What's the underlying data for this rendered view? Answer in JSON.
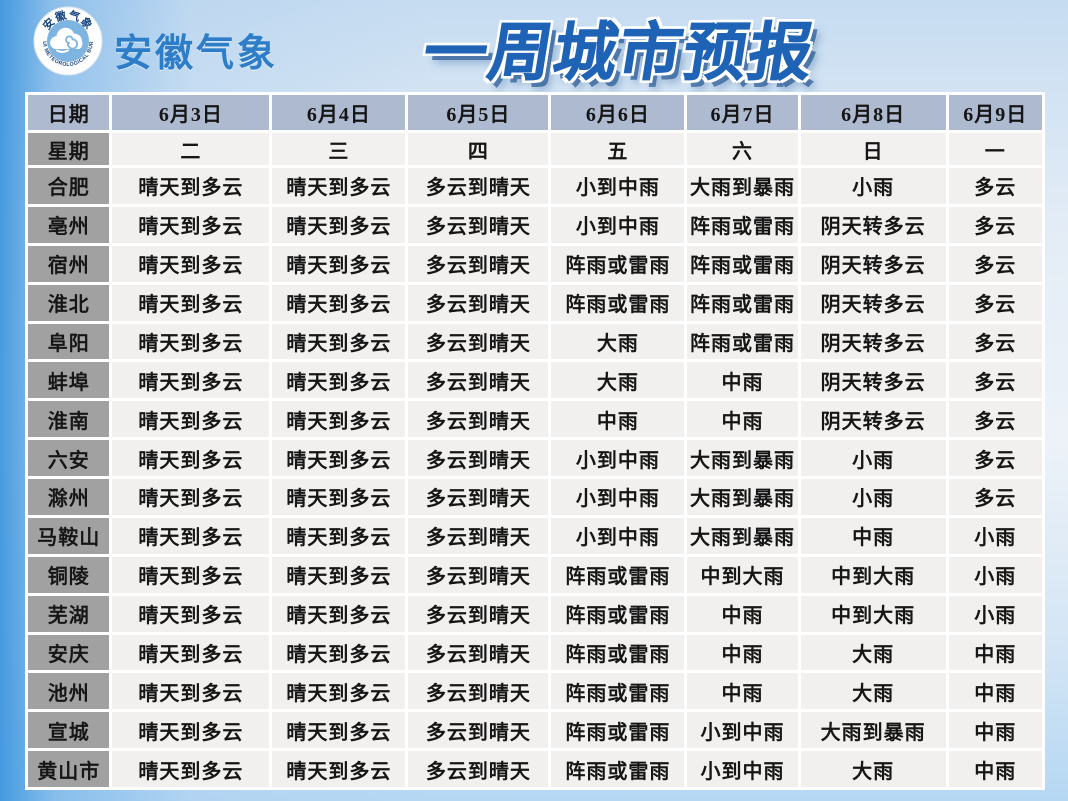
{
  "brand": {
    "name": "安徽气象",
    "logo": {
      "ring_top_text": "安徽气象",
      "ring_bottom_text": "ANHUI METEOROLOGICAL BUREAU",
      "icon": "cloud-spiral-icon"
    }
  },
  "colors": {
    "brand_blue": "#2e7dc8",
    "title_blue": "#1e63b5",
    "title_shadow_blue": "#1a4e8d",
    "page_top_blue": "#3e96de",
    "page_bottom_blue": "#b5d7f3",
    "date_header_bg": "#aebacf",
    "label_gray_bg": "#a1a1a1",
    "cell_bg": "#f1f0ee",
    "grid_white": "#ffffff",
    "text_dark": "#161616"
  },
  "chart_data": {
    "type": "table",
    "title": "一周城市预报",
    "date_row": {
      "label": "日期",
      "values": [
        "6月3日",
        "6月4日",
        "6月5日",
        "6月6日",
        "6月7日",
        "6月8日",
        "6月9日"
      ]
    },
    "week_row": {
      "label": "星期",
      "values": [
        "二",
        "三",
        "四",
        "五",
        "六",
        "日",
        "一"
      ]
    },
    "rows": [
      {
        "city": "合肥",
        "values": [
          "晴天到多云",
          "晴天到多云",
          "多云到晴天",
          "小到中雨",
          "大雨到暴雨",
          "小雨",
          "多云"
        ]
      },
      {
        "city": "亳州",
        "values": [
          "晴天到多云",
          "晴天到多云",
          "多云到晴天",
          "小到中雨",
          "阵雨或雷雨",
          "阴天转多云",
          "多云"
        ]
      },
      {
        "city": "宿州",
        "values": [
          "晴天到多云",
          "晴天到多云",
          "多云到晴天",
          "阵雨或雷雨",
          "阵雨或雷雨",
          "阴天转多云",
          "多云"
        ]
      },
      {
        "city": "淮北",
        "values": [
          "晴天到多云",
          "晴天到多云",
          "多云到晴天",
          "阵雨或雷雨",
          "阵雨或雷雨",
          "阴天转多云",
          "多云"
        ]
      },
      {
        "city": "阜阳",
        "values": [
          "晴天到多云",
          "晴天到多云",
          "多云到晴天",
          "大雨",
          "阵雨或雷雨",
          "阴天转多云",
          "多云"
        ]
      },
      {
        "city": "蚌埠",
        "values": [
          "晴天到多云",
          "晴天到多云",
          "多云到晴天",
          "大雨",
          "中雨",
          "阴天转多云",
          "多云"
        ]
      },
      {
        "city": "淮南",
        "values": [
          "晴天到多云",
          "晴天到多云",
          "多云到晴天",
          "中雨",
          "中雨",
          "阴天转多云",
          "多云"
        ]
      },
      {
        "city": "六安",
        "values": [
          "晴天到多云",
          "晴天到多云",
          "多云到晴天",
          "小到中雨",
          "大雨到暴雨",
          "小雨",
          "多云"
        ]
      },
      {
        "city": "滁州",
        "values": [
          "晴天到多云",
          "晴天到多云",
          "多云到晴天",
          "小到中雨",
          "大雨到暴雨",
          "小雨",
          "多云"
        ]
      },
      {
        "city": "马鞍山",
        "values": [
          "晴天到多云",
          "晴天到多云",
          "多云到晴天",
          "小到中雨",
          "大雨到暴雨",
          "中雨",
          "小雨"
        ]
      },
      {
        "city": "铜陵",
        "values": [
          "晴天到多云",
          "晴天到多云",
          "多云到晴天",
          "阵雨或雷雨",
          "中到大雨",
          "中到大雨",
          "小雨"
        ]
      },
      {
        "city": "芜湖",
        "values": [
          "晴天到多云",
          "晴天到多云",
          "多云到晴天",
          "阵雨或雷雨",
          "中雨",
          "中到大雨",
          "小雨"
        ]
      },
      {
        "city": "安庆",
        "values": [
          "晴天到多云",
          "晴天到多云",
          "多云到晴天",
          "阵雨或雷雨",
          "中雨",
          "大雨",
          "中雨"
        ]
      },
      {
        "city": "池州",
        "values": [
          "晴天到多云",
          "晴天到多云",
          "多云到晴天",
          "阵雨或雷雨",
          "中雨",
          "大雨",
          "中雨"
        ]
      },
      {
        "city": "宣城",
        "values": [
          "晴天到多云",
          "晴天到多云",
          "多云到晴天",
          "阵雨或雷雨",
          "小到中雨",
          "大雨到暴雨",
          "中雨"
        ]
      },
      {
        "city": "黄山市",
        "values": [
          "晴天到多云",
          "晴天到多云",
          "多云到晴天",
          "阵雨或雷雨",
          "小到中雨",
          "大雨",
          "中雨"
        ]
      }
    ]
  }
}
